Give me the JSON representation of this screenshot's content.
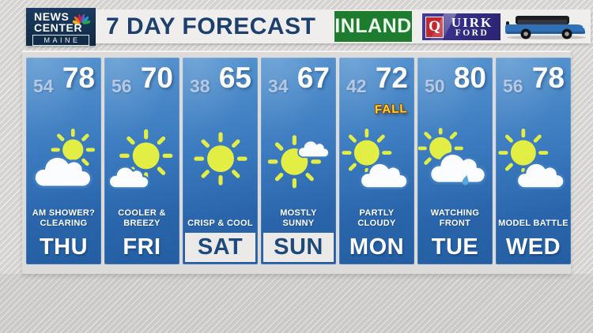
{
  "station_logo": {
    "line1": "NEWS",
    "line2": "CENTER",
    "line3": "MAINE"
  },
  "header": {
    "title": "7 DAY FORECAST",
    "region_badge": "INLAND"
  },
  "sponsor": {
    "q": "Q",
    "name_rest": "UIRK",
    "line2": "FORD",
    "vehicle_icon": "blue-suv"
  },
  "colors": {
    "navy": "#1d3f6d",
    "column_blue_top": "#5795d0",
    "column_blue_bottom": "#245ea2",
    "inland_green": "#1e7c2f",
    "quirk_purple": "#332c85",
    "sun_yellow": "#e3ee45",
    "badge_gold": "#ffd03c",
    "low_temp_text": "#b6c8e2"
  },
  "forecast": {
    "days": [
      {
        "day": "THU",
        "low": "54",
        "high": "78",
        "condition": "AM SHOWER?\nCLEARING",
        "icon": "mostly-cloudy",
        "weekend": false,
        "badge": ""
      },
      {
        "day": "FRI",
        "low": "56",
        "high": "70",
        "condition": "COOLER &\nBREEZY",
        "icon": "mostly-sunny",
        "weekend": false,
        "badge": ""
      },
      {
        "day": "SAT",
        "low": "38",
        "high": "65",
        "condition": "CRISP & COOL",
        "icon": "sunny",
        "weekend": true,
        "badge": ""
      },
      {
        "day": "SUN",
        "low": "34",
        "high": "67",
        "condition": "MOSTLY\nSUNNY",
        "icon": "sun-with-cloud",
        "weekend": true,
        "badge": ""
      },
      {
        "day": "MON",
        "low": "42",
        "high": "72",
        "condition": "PARTLY\nCLOUDY",
        "icon": "partly-cloudy",
        "weekend": false,
        "badge": "FALL"
      },
      {
        "day": "TUE",
        "low": "50",
        "high": "80",
        "condition": "WATCHING\nFRONT",
        "icon": "sun-behind-cloud-shower",
        "weekend": false,
        "badge": ""
      },
      {
        "day": "WED",
        "low": "56",
        "high": "78",
        "condition": "MODEL BATTLE",
        "icon": "partly-cloudy",
        "weekend": false,
        "badge": ""
      }
    ]
  }
}
